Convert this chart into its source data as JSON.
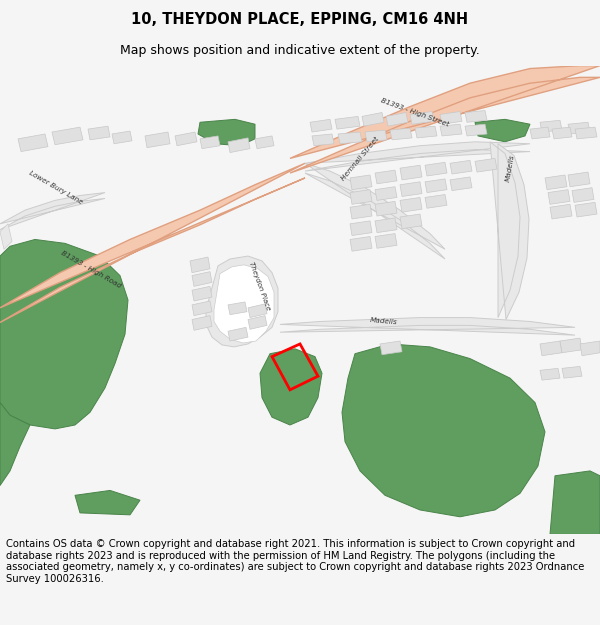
{
  "title": "10, THEYDON PLACE, EPPING, CM16 4NH",
  "subtitle": "Map shows position and indicative extent of the property.",
  "footer": "Contains OS data © Crown copyright and database right 2021. This information is subject to Crown copyright and database rights 2023 and is reproduced with the permission of HM Land Registry. The polygons (including the associated geometry, namely x, y co-ordinates) are subject to Crown copyright and database rights 2023 Ordnance Survey 100026316.",
  "bg_color": "#f5f5f5",
  "map_bg": "#ffffff",
  "road_color": "#e8e8e8",
  "road_stroke": "#cccccc",
  "b_road_fill": "#f5c9b0",
  "b_road_stroke": "#e0a080",
  "green_color": "#5f9e5f",
  "green_stroke": "#4a844a",
  "building_color": "#e0e0e0",
  "building_stroke": "#c8c8c8",
  "plot_color": "#ff0000",
  "title_fontsize": 10.5,
  "subtitle_fontsize": 9,
  "footer_fontsize": 7.2
}
